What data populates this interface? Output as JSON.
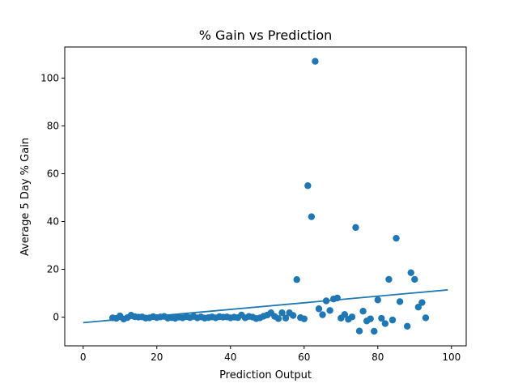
{
  "chart_data": {
    "type": "scatter",
    "title": "% Gain vs Prediction",
    "xlabel": "Prediction Output",
    "ylabel": "Average 5 Day % Gain",
    "xlim": [
      -5,
      104
    ],
    "ylim": [
      -12,
      113
    ],
    "xticks": [
      0,
      20,
      40,
      60,
      80,
      100
    ],
    "yticks": [
      0,
      20,
      40,
      60,
      80,
      100
    ],
    "grid": false,
    "point_color": "#1f77b4",
    "line_color": "#1f77b4",
    "points": [
      [
        8,
        -0.3
      ],
      [
        9,
        -0.5
      ],
      [
        10,
        0.5
      ],
      [
        11,
        -0.8
      ],
      [
        12,
        -0.2
      ],
      [
        13,
        0.8
      ],
      [
        14,
        0.2
      ],
      [
        15,
        0.0
      ],
      [
        16,
        0.1
      ],
      [
        17,
        -0.4
      ],
      [
        18,
        -0.3
      ],
      [
        19,
        0.2
      ],
      [
        20,
        -0.2
      ],
      [
        21,
        0.1
      ],
      [
        22,
        0.3
      ],
      [
        23,
        -0.4
      ],
      [
        24,
        -0.2
      ],
      [
        25,
        -0.5
      ],
      [
        26,
        0.0
      ],
      [
        27,
        -0.3
      ],
      [
        28,
        0.2
      ],
      [
        29,
        -0.2
      ],
      [
        30,
        0.3
      ],
      [
        31,
        -0.3
      ],
      [
        32,
        0.1
      ],
      [
        33,
        -0.4
      ],
      [
        34,
        -0.2
      ],
      [
        35,
        0.1
      ],
      [
        36,
        -0.3
      ],
      [
        37,
        0.2
      ],
      [
        38,
        0.0
      ],
      [
        39,
        0.1
      ],
      [
        40,
        -0.3
      ],
      [
        41,
        0.0
      ],
      [
        42,
        -0.2
      ],
      [
        43,
        0.9
      ],
      [
        44,
        -0.3
      ],
      [
        45,
        0.3
      ],
      [
        46,
        0.0
      ],
      [
        47,
        -0.6
      ],
      [
        48,
        -0.3
      ],
      [
        49,
        0.4
      ],
      [
        50,
        0.9
      ],
      [
        51,
        1.8
      ],
      [
        52,
        0.3
      ],
      [
        53,
        -0.6
      ],
      [
        54,
        1.8
      ],
      [
        55,
        -0.4
      ],
      [
        56,
        1.8
      ],
      [
        57,
        0.7
      ],
      [
        58,
        15.7
      ],
      [
        59,
        -0.2
      ],
      [
        60,
        -0.7
      ],
      [
        61,
        55.0
      ],
      [
        62,
        42.0
      ],
      [
        63,
        107.0
      ],
      [
        64,
        3.5
      ],
      [
        65,
        1.0
      ],
      [
        66,
        6.8
      ],
      [
        67,
        2.8
      ],
      [
        68,
        7.6
      ],
      [
        69,
        8.0
      ],
      [
        70,
        -0.4
      ],
      [
        71,
        1.1
      ],
      [
        72,
        -0.9
      ],
      [
        73,
        0.1
      ],
      [
        74,
        37.5
      ],
      [
        75,
        -5.8
      ],
      [
        76,
        2.5
      ],
      [
        77,
        -1.6
      ],
      [
        78,
        -0.7
      ],
      [
        79,
        -5.9
      ],
      [
        80,
        7.2
      ],
      [
        81,
        -0.5
      ],
      [
        82,
        -2.7
      ],
      [
        83,
        15.8
      ],
      [
        84,
        -1.2
      ],
      [
        85,
        33.0
      ],
      [
        86,
        6.5
      ],
      [
        88,
        -3.8
      ],
      [
        89,
        18.6
      ],
      [
        90,
        15.8
      ],
      [
        91,
        4.2
      ],
      [
        92,
        6.1
      ],
      [
        93,
        -0.3
      ]
    ],
    "fit_line": {
      "x": [
        0,
        99
      ],
      "y": [
        -2.3,
        11.4
      ]
    }
  }
}
